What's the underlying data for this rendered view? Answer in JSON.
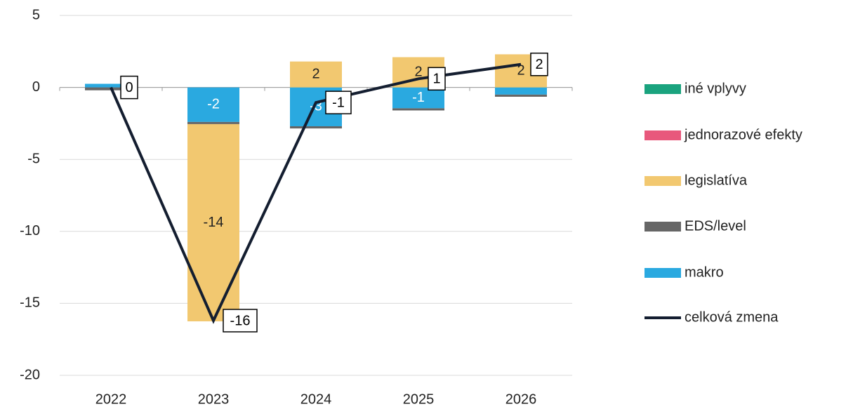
{
  "chart_data": {
    "type": "bar",
    "stacked": true,
    "categories": [
      "2022",
      "2023",
      "2024",
      "2025",
      "2026"
    ],
    "series": [
      {
        "name": "iné vplyvy",
        "color": "#1aa37e",
        "values": [
          0,
          0,
          0,
          0,
          0
        ]
      },
      {
        "name": "jednorazové efekty",
        "color": "#e8587c",
        "values": [
          0,
          0,
          0,
          0,
          0
        ]
      },
      {
        "name": "legislatíva",
        "color": "#f2c870",
        "values": [
          0,
          -13.7,
          1.8,
          2.1,
          2.3
        ],
        "value_labels": [
          null,
          "-14",
          "2",
          "2",
          "2"
        ]
      },
      {
        "name": "EDS/level",
        "color": "#666666",
        "values": [
          -0.2,
          -0.15,
          -0.15,
          -0.15,
          -0.15
        ]
      },
      {
        "name": "makro",
        "color": "#2aa9e0",
        "values": [
          0.25,
          -2.4,
          -2.7,
          -1.45,
          -0.5
        ],
        "value_labels": [
          null,
          "-2",
          "-3",
          "-1",
          null
        ]
      }
    ],
    "line": {
      "name": "celková zmena",
      "color": "#141e30",
      "values": [
        0,
        -16.2,
        -1.05,
        0.6,
        1.6
      ],
      "value_labels": [
        "0",
        "-16",
        "-1",
        "1",
        "2"
      ]
    },
    "ylim": [
      -20,
      5
    ],
    "yticks": [
      -20,
      -15,
      -10,
      -5,
      0,
      5
    ],
    "grid": true
  }
}
